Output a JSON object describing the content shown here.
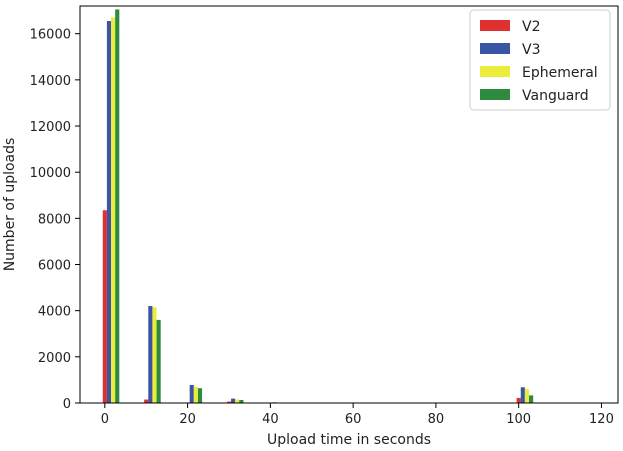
{
  "chart_data": {
    "type": "bar",
    "xlabel": "Upload time in seconds",
    "ylabel": "Number of uploads",
    "xlim": [
      -6,
      124
    ],
    "ylim": [
      0,
      17200
    ],
    "x_ticks": [
      0,
      20,
      40,
      60,
      80,
      100,
      120
    ],
    "y_ticks": [
      0,
      2000,
      4000,
      6000,
      8000,
      10000,
      12000,
      14000,
      16000
    ],
    "grid": false,
    "legend_position": "top-right",
    "bin_width": 10,
    "bin_centers": [
      5,
      15,
      25,
      35,
      45,
      55,
      65,
      75,
      85,
      95,
      105
    ],
    "series": [
      {
        "name": "V2",
        "color": "#e03030",
        "values": [
          8350,
          150,
          20,
          60,
          15,
          0,
          0,
          0,
          0,
          0,
          220
        ]
      },
      {
        "name": "V3",
        "color": "#3a55a4",
        "values": [
          16550,
          4200,
          780,
          190,
          30,
          10,
          5,
          0,
          0,
          0,
          680
        ]
      },
      {
        "name": "Ephemeral",
        "color": "#ecec3a",
        "values": [
          16700,
          4150,
          700,
          150,
          20,
          5,
          0,
          0,
          0,
          0,
          600
        ]
      },
      {
        "name": "Vanguard",
        "color": "#2d8a3e",
        "values": [
          17050,
          3600,
          640,
          130,
          15,
          5,
          0,
          0,
          0,
          0,
          330
        ]
      }
    ]
  }
}
